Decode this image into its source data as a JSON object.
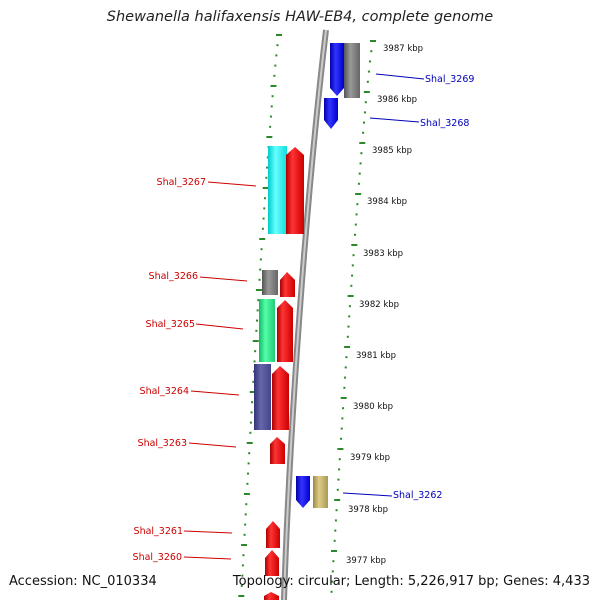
{
  "title": "Shewanella halifaxensis HAW-EB4, complete genome",
  "footer": {
    "accession": "Accession: NC_010334",
    "topology": "Topology: circular; Length: 5,226,917 bp; Genes: 4,433"
  },
  "scale_labels": [
    "3987 kbp",
    "3986 kbp",
    "3985 kbp",
    "3984 kbp",
    "3983 kbp",
    "3982 kbp",
    "3981 kbp",
    "3980 kbp",
    "3979 kbp",
    "3978 kbp",
    "3977 kbp"
  ],
  "genes": [
    {
      "name": "Shal_3269",
      "color": "#0000bb"
    },
    {
      "name": "Shal_3268",
      "color": "#0000bb"
    },
    {
      "name": "Shal_3267",
      "color": "#cc0000"
    },
    {
      "name": "Shal_3266",
      "color": "#cc0000"
    },
    {
      "name": "Shal_3265",
      "color": "#cc0000"
    },
    {
      "name": "Shal_3264",
      "color": "#cc0000"
    },
    {
      "name": "Shal_3263",
      "color": "#cc0000"
    },
    {
      "name": "Shal_3262",
      "color": "#0000bb"
    },
    {
      "name": "Shal_3261",
      "color": "#cc0000"
    },
    {
      "name": "Shal_3260",
      "color": "#cc0000"
    }
  ],
  "colors": {
    "forward_cds": "#ff0000",
    "reverse_cds": "#0000ff",
    "backbone": "#999999",
    "ruler_ticks": "#2a8a2a",
    "category_cyan": "#22eeee",
    "category_gray": "#777777",
    "category_green": "#22dd88",
    "category_purple": "#555599",
    "category_khaki": "#bbaa66"
  }
}
